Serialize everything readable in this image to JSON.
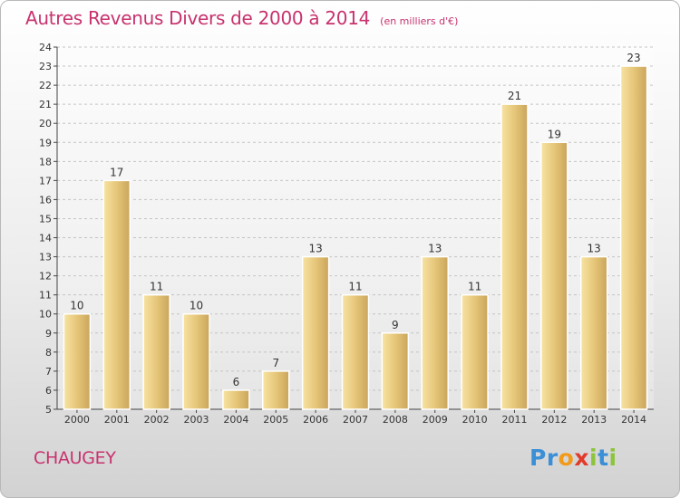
{
  "chart_data": {
    "type": "bar",
    "title": "Autres Revenus Divers de 2000 à 2014",
    "subtitle": "(en milliers d'€)",
    "categories": [
      "2000",
      "2001",
      "2002",
      "2003",
      "2004",
      "2005",
      "2006",
      "2007",
      "2008",
      "2009",
      "2010",
      "2011",
      "2012",
      "2013",
      "2014"
    ],
    "values": [
      10,
      17,
      11,
      10,
      6,
      7,
      13,
      11,
      9,
      13,
      11,
      21,
      19,
      13,
      23
    ],
    "ylim": [
      5,
      24
    ],
    "yticks": [
      5,
      6,
      7,
      8,
      9,
      10,
      11,
      12,
      13,
      14,
      15,
      16,
      17,
      18,
      19,
      20,
      21,
      22,
      23,
      24
    ],
    "grid": true,
    "bar_color": "#e8c46a"
  },
  "footer": {
    "commune": "CHAUGEY",
    "logo_letters": [
      {
        "char": "P",
        "color": "#3a8fd6"
      },
      {
        "char": "r",
        "color": "#3a8fd6"
      },
      {
        "char": "o",
        "color": "#f29a1a"
      },
      {
        "char": "x",
        "color": "#e23a2a"
      },
      {
        "char": "i",
        "color": "#8cc43c"
      },
      {
        "char": "t",
        "color": "#3a8fd6"
      },
      {
        "char": "i",
        "color": "#8cc43c"
      }
    ]
  }
}
